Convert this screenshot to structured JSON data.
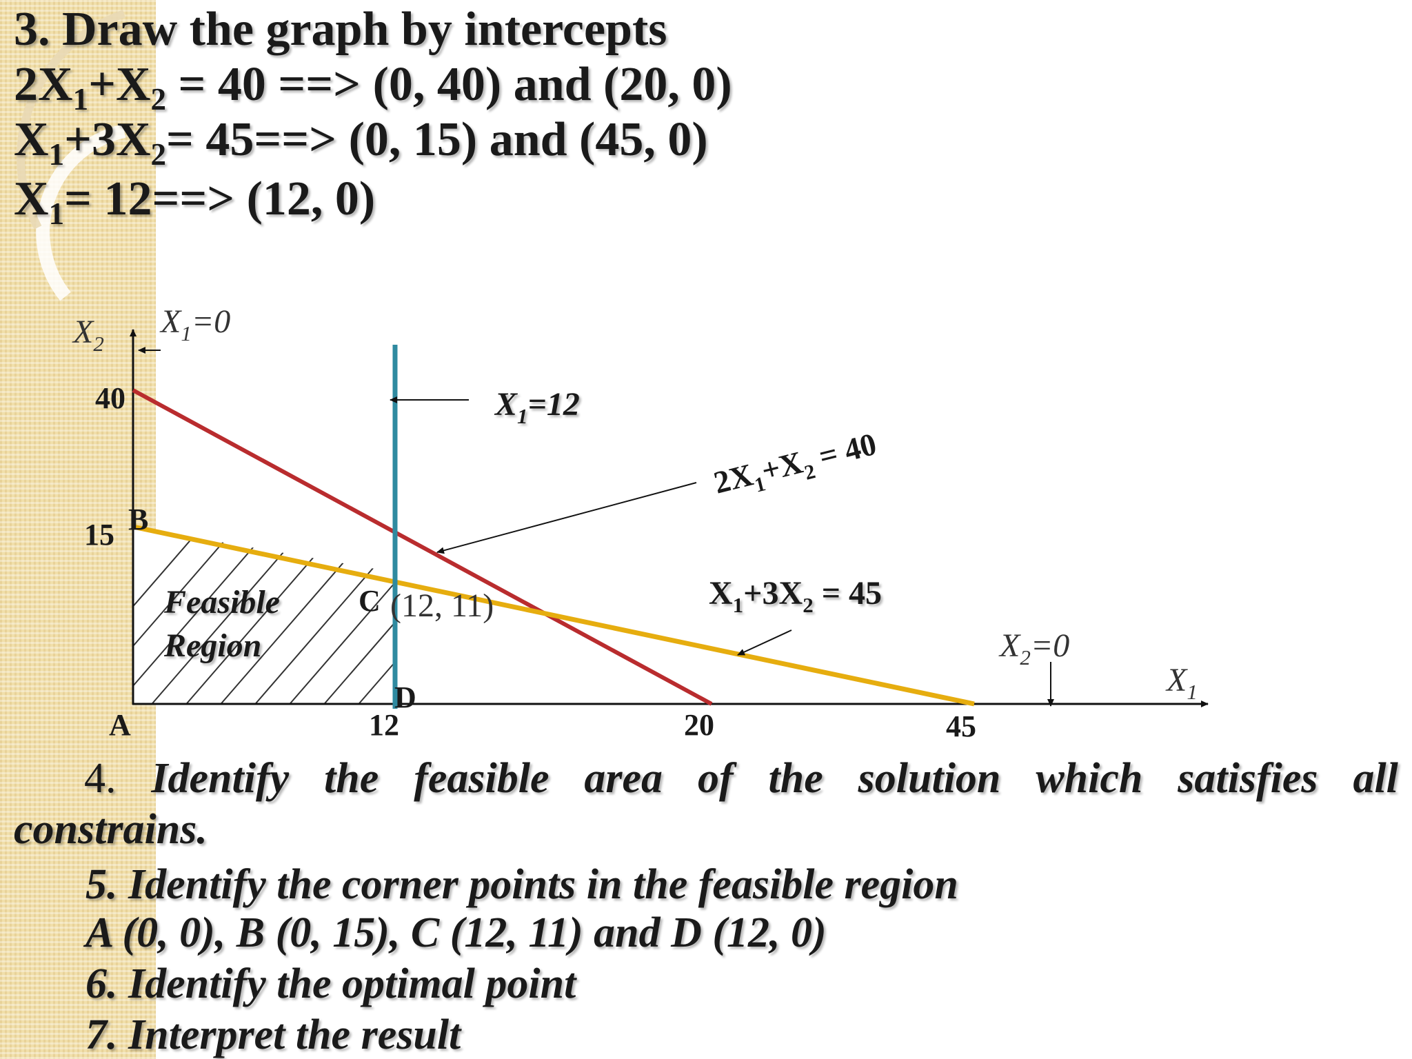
{
  "heading": {
    "step3_title": "3. Draw the graph by intercepts",
    "line1": {
      "t1": "2X",
      "s1": "1",
      "t2": "+X",
      "s2": "2",
      "t3": " = 40 ==> (0, 40) and (20, 0)"
    },
    "line2": {
      "t1": "X",
      "s1": "1",
      "t2": "+3X",
      "s2": "2",
      "t3": "= 45==> (0, 15) and (45, 0)"
    },
    "line3": {
      "t1": "X",
      "s1": "1",
      "t2": "= 12==> (12, 0)"
    }
  },
  "graph": {
    "axis_y_label": {
      "base": "X",
      "sub": "2"
    },
    "axis_x_label": {
      "base": "X",
      "sub": "1"
    },
    "x1_zero": {
      "base": "X",
      "sub": "1",
      "rest": "=0"
    },
    "x1_twelve": {
      "base": "X",
      "sub": "1",
      "rest": "=12"
    },
    "x2_zero": {
      "base": "X",
      "sub": "2",
      "rest": "=0"
    },
    "line_2x1_x2": {
      "a": "2X",
      "as": "1",
      "b": "+X",
      "bs": "2",
      "c": " = 40"
    },
    "line_x1_3x2": {
      "a": "X",
      "as": "1",
      "b": "+3X",
      "bs": "2",
      "c": " = 45"
    },
    "y_ticks": [
      "40",
      "15"
    ],
    "x_ticks": [
      "12",
      "20",
      "45"
    ],
    "corner_a": "A",
    "corner_b": "B",
    "corner_c": "C",
    "corner_d": "D",
    "point_c_coords": "(12, 11)",
    "feasible_word1": "Feasible",
    "feasible_word2": "Region",
    "colors": {
      "constraint_2x1_x2": "#b92c2e",
      "constraint_x1_3x2": "#e6ad0f",
      "constraint_x1_12": "#2f8aa0"
    }
  },
  "steps": {
    "s4_num": "4.",
    "s4_words": [
      "Identify",
      "the",
      "feasible",
      "area",
      "of",
      "the",
      "solution",
      "which",
      "satisfies",
      "all"
    ],
    "s4_cont": "constrains.",
    "s5": "5. Identify the corner points in the feasible region",
    "s5_points": "A (0, 0), B (0, 15), C (12, 11) and D (12, 0)",
    "s6": "6. Identify the optimal point",
    "s7": "7. Interpret the result"
  }
}
